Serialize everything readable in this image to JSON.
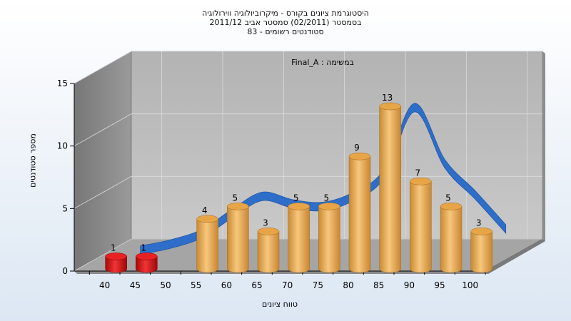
{
  "title_lines": [
    "היסטוגרמת ציונים בקורס - מיקרוביולוגיה ווירולוגיה",
    "בסמסטר  (02/2011)  סמסטר אביב 2011/12",
    "סטודנטים רשומים - 83"
  ],
  "chart_data": {
    "type": "bar",
    "title": "היסטוגרמת ציונים בקורס - מיקרוביולוגיה ווירולוגיה",
    "subtitle": "בסמסטר  (02/2011)  סמסטר אביב 2011/12 — סטודנטים רשומים - 83",
    "xlabel": "טווח ציונים",
    "ylabel": "מספר סטודנטים",
    "annotation": "במשימה : Final_A",
    "ylim": [
      0,
      15
    ],
    "yticks": [
      0,
      5,
      10,
      15
    ],
    "categories": [
      "40",
      "45",
      "50",
      "55",
      "60",
      "65",
      "70",
      "75",
      "80",
      "85",
      "90",
      "95",
      "100"
    ],
    "series": [
      {
        "values": [
          1,
          1,
          0,
          4,
          5,
          3,
          5,
          5,
          9,
          13,
          7,
          5,
          3
        ],
        "colors": [
          "#d81414",
          "#d81414",
          "#f0a848",
          "#f0a848",
          "#f0a848",
          "#f0a848",
          "#f0a848",
          "#f0a848",
          "#f0a848",
          "#f0a848",
          "#f0a848",
          "#f0a848",
          "#f0a848"
        ]
      },
      {
        "type": "line",
        "color": "#2e6ec8",
        "values": [
          0.3,
          0.8,
          1.6,
          3.2,
          4.6,
          4.0,
          3.8,
          4.6,
          6.4,
          11.7,
          7.2,
          4.7,
          2.0
        ]
      }
    ],
    "grid": true
  }
}
